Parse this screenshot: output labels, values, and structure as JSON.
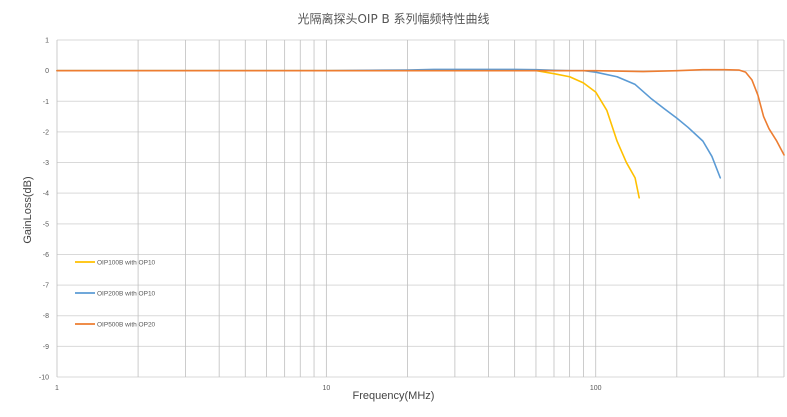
{
  "chart_data": {
    "type": "line",
    "title": "光隔离探头OIP B 系列幅频特性曲线",
    "xlabel": "Frequency(MHz)",
    "ylabel": "GainLoss(dB)",
    "x_scale": "log",
    "xlim": [
      1,
      500
    ],
    "ylim": [
      -10,
      1
    ],
    "x_ticks": [
      1,
      10,
      100
    ],
    "x_tick_labels": [
      "1",
      "10",
      "100"
    ],
    "y_ticks": [
      1,
      0,
      -1,
      -2,
      -3,
      -4,
      -5,
      -6,
      -7,
      -8,
      -9,
      -10
    ],
    "y_tick_labels": [
      "1",
      "0",
      "-1",
      "-2",
      "-3",
      "-4",
      "-5",
      "-6",
      "-7",
      "-8",
      "-9",
      "-10"
    ],
    "grid": true,
    "legend_position": "left",
    "series": [
      {
        "name": "OIP100B with OP10",
        "color": "#FFC000",
        "x": [
          1,
          2,
          5,
          10,
          20,
          30,
          40,
          50,
          60,
          70,
          80,
          90,
          100,
          110,
          120,
          130,
          140,
          145
        ],
        "y": [
          0,
          0,
          0,
          0,
          0,
          0.02,
          0.02,
          0.02,
          0,
          -0.1,
          -0.2,
          -0.4,
          -0.7,
          -1.3,
          -2.3,
          -3.0,
          -3.5,
          -4.15
        ]
      },
      {
        "name": "OIP200B with OP10",
        "color": "#5B9BD5",
        "x": [
          1,
          10,
          20,
          25,
          30,
          40,
          50,
          60,
          70,
          80,
          90,
          100,
          120,
          140,
          160,
          180,
          200,
          220,
          250,
          270,
          290
        ],
        "y": [
          0,
          0,
          0.02,
          0.04,
          0.04,
          0.04,
          0.04,
          0.03,
          0.01,
          0,
          0,
          -0.05,
          -0.2,
          -0.45,
          -0.9,
          -1.25,
          -1.55,
          -1.85,
          -2.3,
          -2.8,
          -3.5
        ]
      },
      {
        "name": "OIP500B with OP20",
        "color": "#ED7D31",
        "x": [
          1,
          10,
          20,
          50,
          100,
          150,
          200,
          250,
          300,
          340,
          360,
          380,
          400,
          420,
          440,
          470,
          500
        ],
        "y": [
          0,
          0,
          0,
          0,
          0,
          -0.03,
          0,
          0.03,
          0.03,
          0.02,
          -0.05,
          -0.3,
          -0.8,
          -1.5,
          -1.9,
          -2.3,
          -2.75
        ]
      }
    ]
  }
}
